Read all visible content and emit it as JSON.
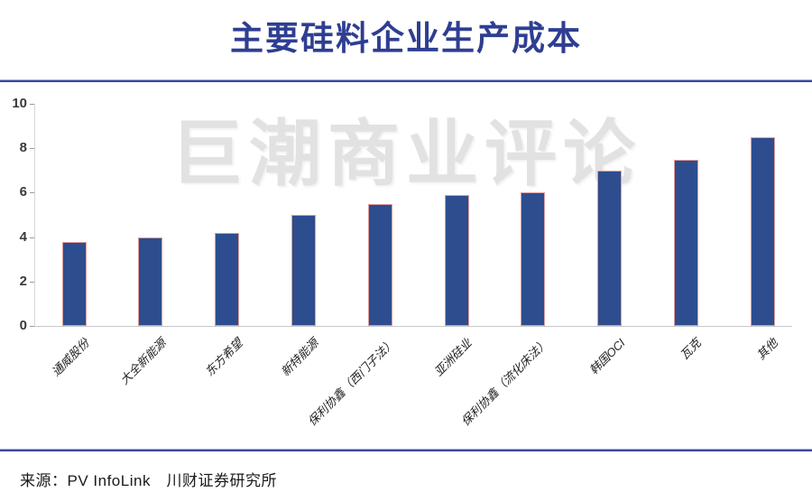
{
  "page": {
    "title": "主要硅料企业生产成本",
    "watermark": "巨潮商业评论",
    "source": "来源：PV InfoLink　川财证券研究所"
  },
  "colors": {
    "title_text": "#2e3e92",
    "divider": "#3a489c",
    "bar_fill": "#2d4d8e",
    "bar_border": "#df9d9b",
    "watermark_text": "#e2e2e2",
    "axis_line": "#c9c9c9",
    "tick_label": "#3a3a3a"
  },
  "chart_data": {
    "type": "bar",
    "title": "主要硅料企业生产成本",
    "categories": [
      "通威股份",
      "大全新能源",
      "东方希望",
      "新特能源",
      "保利协鑫（西门子法）",
      "亚洲硅业",
      "保利协鑫（流化床法）",
      "韩国OCI",
      "瓦克",
      "其他"
    ],
    "values": [
      3.8,
      4.0,
      4.2,
      5.0,
      5.5,
      5.9,
      6.0,
      7.0,
      7.5,
      8.5
    ],
    "xlabel": "",
    "ylabel": "",
    "ylim": [
      0,
      10
    ],
    "yticks": [
      0,
      2,
      4,
      6,
      8,
      10
    ],
    "grid": false,
    "legend_position": "none",
    "watermark": "巨潮商业评论",
    "source_note": "来源：PV InfoLink　川财证券研究所"
  }
}
